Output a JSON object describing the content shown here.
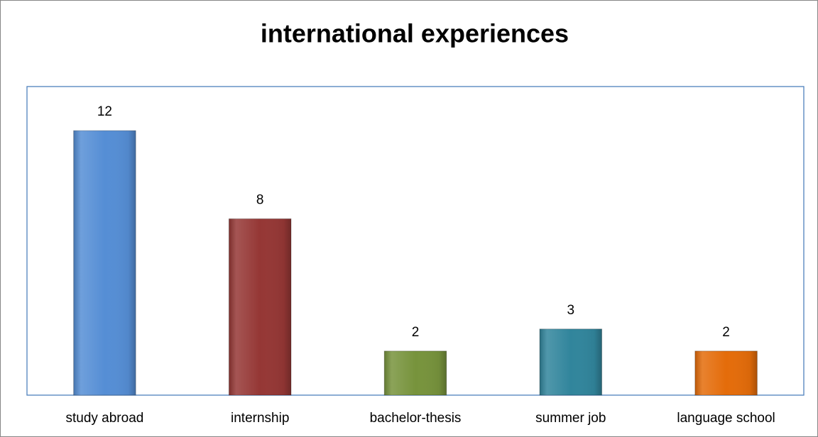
{
  "chart_data": {
    "type": "bar",
    "title": "international experiences",
    "categories": [
      "study abroad",
      "internship",
      "bachelor-thesis",
      "summer job",
      "language school"
    ],
    "values": [
      12,
      8,
      2,
      3,
      2
    ],
    "colors": [
      "#558ed5",
      "#953735",
      "#77933c",
      "#31859c",
      "#e46c0a"
    ],
    "ylim": [
      0,
      14
    ]
  }
}
